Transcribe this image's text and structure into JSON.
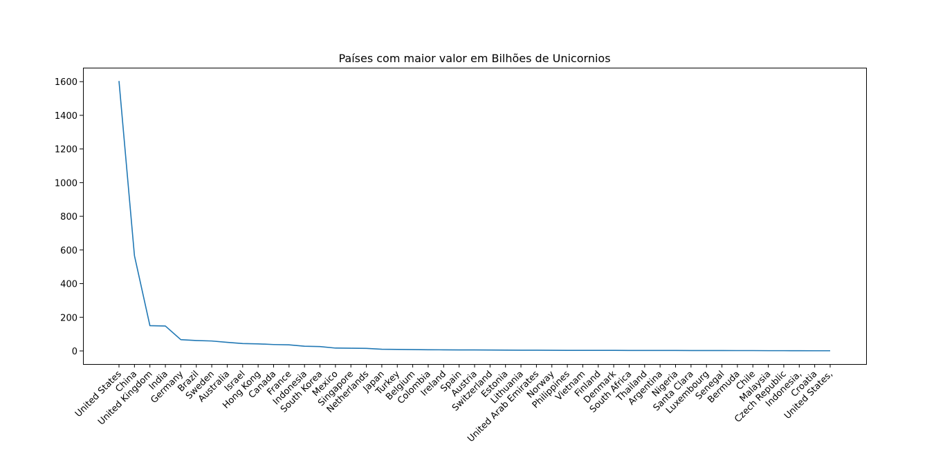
{
  "chart_data": {
    "type": "line",
    "title": "Países com maior valor em Bilhões de Unicornios",
    "xlabel": "",
    "ylabel": "",
    "ylim": [
      -78,
      1683
    ],
    "yticks": [
      0,
      200,
      400,
      600,
      800,
      1000,
      1200,
      1400,
      1600
    ],
    "grid": false,
    "line_color": "#1f77b4",
    "categories": [
      "United States",
      "China",
      "United Kingdom",
      "India",
      "Germany",
      "Brazil",
      "Sweden",
      "Australia",
      "Israel",
      "Hong Kong",
      "Canada",
      "France",
      "Indonesia",
      "South Korea",
      "Mexico",
      "Singapore",
      "Netherlands",
      "Japan",
      "Turkey",
      "Belgium",
      "Colombia",
      "Ireland",
      "Spain",
      "Austria",
      "Switzerland",
      "Estonia",
      "Lithuania",
      "United Arab Emirates",
      "Norway",
      "Philippines",
      "Vietnam",
      "Finland",
      "Denmark",
      "South Africa",
      "Thailand",
      "Argentina",
      "Nigeria",
      "Santa Clara",
      "Luxembourg",
      "Senegal",
      "Bermuda",
      "Chile",
      "Malaysia",
      "Czech Republic",
      "Indonesia,",
      "Croatia",
      "United States,"
    ],
    "values": [
      1604,
      566,
      150,
      148,
      67,
      62,
      59,
      51,
      44,
      42,
      38,
      36,
      28,
      26,
      17,
      16,
      15,
      10,
      9,
      8,
      7,
      6.5,
      6,
      6,
      5.5,
      5,
      4.5,
      4.5,
      4,
      3.5,
      3.5,
      3.5,
      3.2,
      3,
      3,
      3,
      2.8,
      2.5,
      2.5,
      2.2,
      2,
      2,
      1.5,
      1.5,
      1.2,
      1,
      1
    ]
  }
}
